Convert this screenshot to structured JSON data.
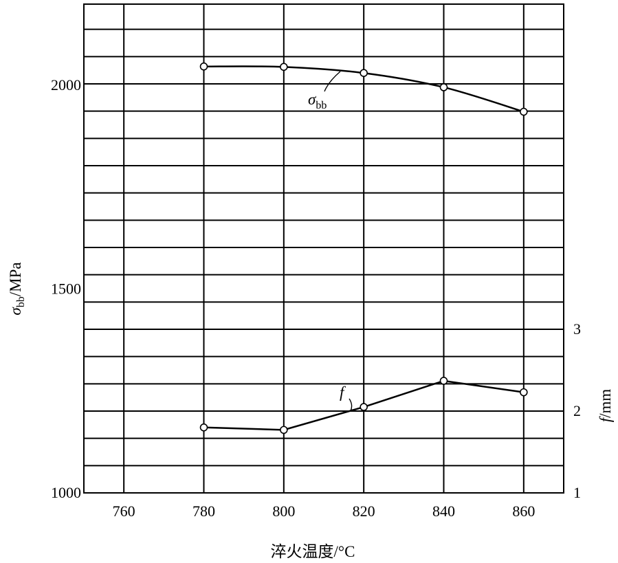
{
  "chart_data": {
    "type": "line",
    "xlabel": "淬火温度/°C",
    "ylabel_left": {
      "symbol": "σ",
      "subscript": "bb",
      "unit": "/MPa"
    },
    "ylabel_right": {
      "symbol": "f",
      "unit": "/mm"
    },
    "xlim": [
      750,
      870
    ],
    "xticks": [
      "760",
      "780",
      "800",
      "820",
      "840",
      "860"
    ],
    "ylim_left": [
      1000,
      2000
    ],
    "yticks_left": [
      "1000",
      "1500",
      "2000"
    ],
    "ylim_right": [
      1,
      3
    ],
    "yticks_right": [
      "1",
      "2",
      "3"
    ],
    "grid": true,
    "series": [
      {
        "name": "σbb",
        "label": {
          "symbol": "σ",
          "subscript": "bb"
        },
        "axis": "left",
        "x": [
          780,
          800,
          820,
          840,
          860
        ],
        "y": [
          2046,
          2045,
          2030,
          1995,
          1935
        ]
      },
      {
        "name": "f",
        "label": {
          "symbol": "f",
          "subscript": ""
        },
        "axis": "right",
        "x": [
          780,
          800,
          820,
          840,
          860
        ],
        "y": [
          1.8,
          1.77,
          2.05,
          2.37,
          2.23
        ]
      }
    ]
  }
}
